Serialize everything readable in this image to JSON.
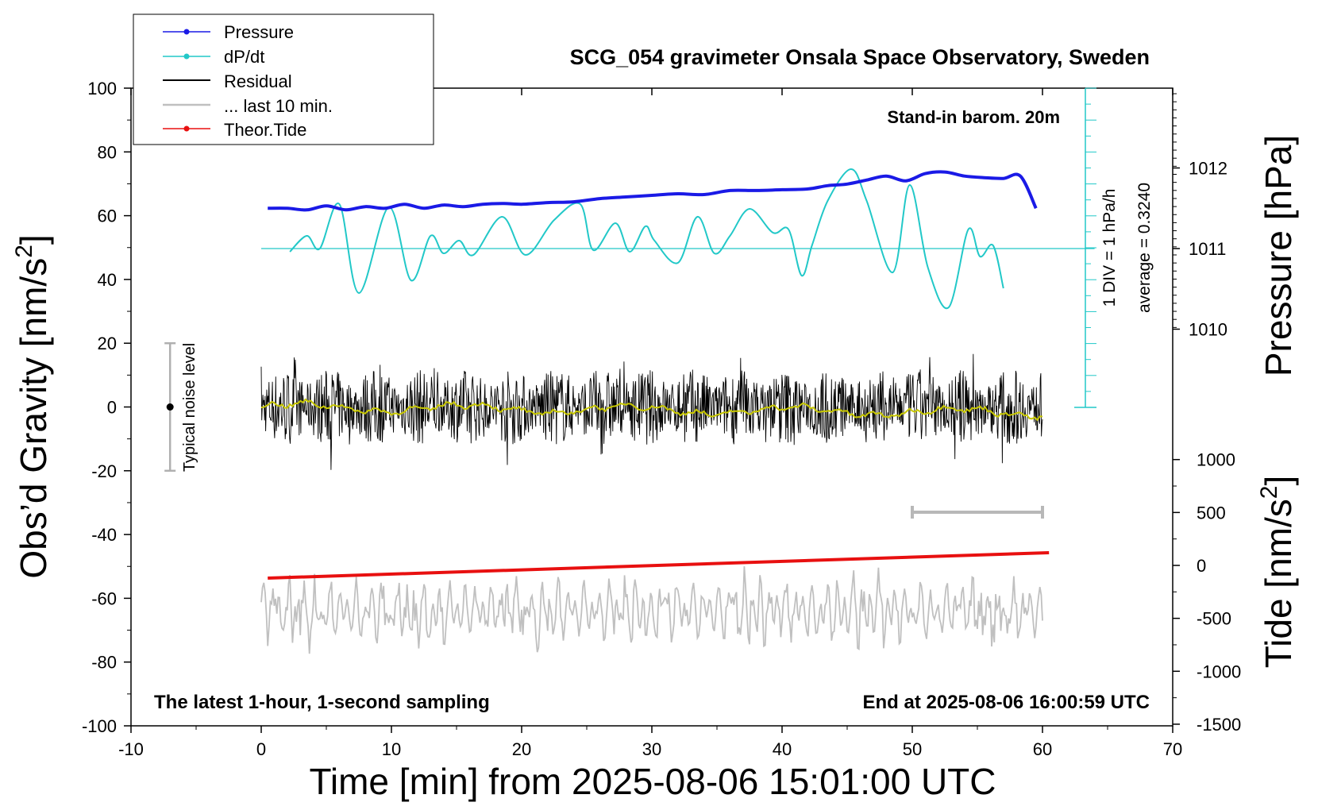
{
  "chart_data": {
    "type": "line",
    "title": "SCG_054 gravimeter Onsala Space Observatory, Sweden",
    "xlabel": "Time [min] from 2025-08-06 15:01:00 UTC",
    "ylabel_left": "Obs’d Gravity [nm/s",
    "ylabel_left_sup": "2",
    "ylabel_left_end": "]",
    "ylabel_right_pressure": "Pressure [hPa]",
    "ylabel_right_tide": "Tide [nm/s",
    "ylabel_right_tide_sup": "2",
    "ylabel_right_tide_end": "]",
    "xlim": [
      -10,
      70
    ],
    "ylim": [
      -100,
      100
    ],
    "x_ticks": [
      "-10",
      "0",
      "10",
      "20",
      "30",
      "40",
      "50",
      "60",
      "70"
    ],
    "y_ticks": [
      "100",
      "80",
      "60",
      "40",
      "20",
      "0",
      "-20",
      "-40",
      "-60",
      "-80",
      "-100"
    ],
    "pressure_ticks": [
      "1012",
      "1011",
      "1010"
    ],
    "tide_ticks": [
      "1000",
      "500",
      "0",
      "-500",
      "-1000",
      "-1500"
    ],
    "legend": {
      "position": "top-left",
      "entries": [
        "Pressure",
        "dP/dt",
        "Residual",
        "... last 10 min.",
        "Theor.Tide"
      ]
    },
    "annotations": {
      "barometer": "Stand-in barom. 20m",
      "div_note": "1 DIV = 1 hPa/h",
      "average": "average = 0.3240",
      "noise": "Typical noise level",
      "latest": "The latest 1-hour, 1-second sampling",
      "end": "End at 2025-08-06 16:00:59 UTC"
    },
    "colors": {
      "pressure": "#1a1ae6",
      "dpdt": "#22c8c8",
      "residual": "#000000",
      "last10": "#c0c0c0",
      "tide": "#e81010",
      "smooth": "#c8c800"
    },
    "series": [
      {
        "name": "Pressure",
        "unit": "hPa",
        "x": [
          0.5,
          2,
          3.5,
          5,
          6.5,
          8,
          9.5,
          11,
          12.5,
          14,
          15.5,
          17,
          18.5,
          20,
          22,
          24,
          26,
          28,
          30,
          32,
          34,
          36,
          38,
          40,
          42,
          43.5,
          45,
          46.5,
          48,
          49.5,
          51,
          52.5,
          54,
          55.5,
          57,
          58.3,
          59.5
        ],
        "values": [
          1011.5,
          1011.5,
          1011.48,
          1011.53,
          1011.48,
          1011.52,
          1011.5,
          1011.55,
          1011.5,
          1011.54,
          1011.52,
          1011.55,
          1011.56,
          1011.55,
          1011.57,
          1011.58,
          1011.62,
          1011.64,
          1011.66,
          1011.68,
          1011.67,
          1011.72,
          1011.72,
          1011.73,
          1011.74,
          1011.78,
          1011.8,
          1011.85,
          1011.9,
          1011.84,
          1011.93,
          1011.95,
          1011.9,
          1011.88,
          1011.87,
          1011.9,
          1011.5
        ]
      },
      {
        "name": "dP/dt",
        "unit": "hPa/h",
        "x": [
          2.2,
          3.5,
          4.5,
          6,
          7.5,
          9.8,
          11.5,
          13,
          14,
          15.2,
          16.3,
          18.5,
          20.3,
          22.5,
          24.5,
          25.5,
          27.2,
          28.3,
          29.5,
          30.2,
          32,
          33.5,
          34.8,
          36,
          37.5,
          39.3,
          40.5,
          41.5,
          42.3,
          43.5,
          45.3,
          46.5,
          48.5,
          49.8,
          51.2,
          52.8,
          54.3,
          55.2,
          56.2,
          57
        ],
        "values": [
          -0.2,
          0.8,
          0.0,
          2.8,
          -2.8,
          2.6,
          -2.0,
          0.8,
          -0.3,
          0.5,
          -0.4,
          2.0,
          -0.4,
          1.8,
          2.8,
          -0.1,
          1.6,
          -0.2,
          1.4,
          0.5,
          -0.9,
          2.0,
          -0.3,
          0.8,
          2.5,
          1.0,
          1.2,
          -1.7,
          0.2,
          3.0,
          5.0,
          3.0,
          -1.5,
          4.0,
          -1.2,
          -3.7,
          1.2,
          -0.5,
          0.2,
          -2.5
        ]
      },
      {
        "name": "Theor.Tide",
        "unit": "nm/s2",
        "x": [
          0.5,
          60.5
        ],
        "values": [
          -120,
          120
        ]
      }
    ]
  }
}
